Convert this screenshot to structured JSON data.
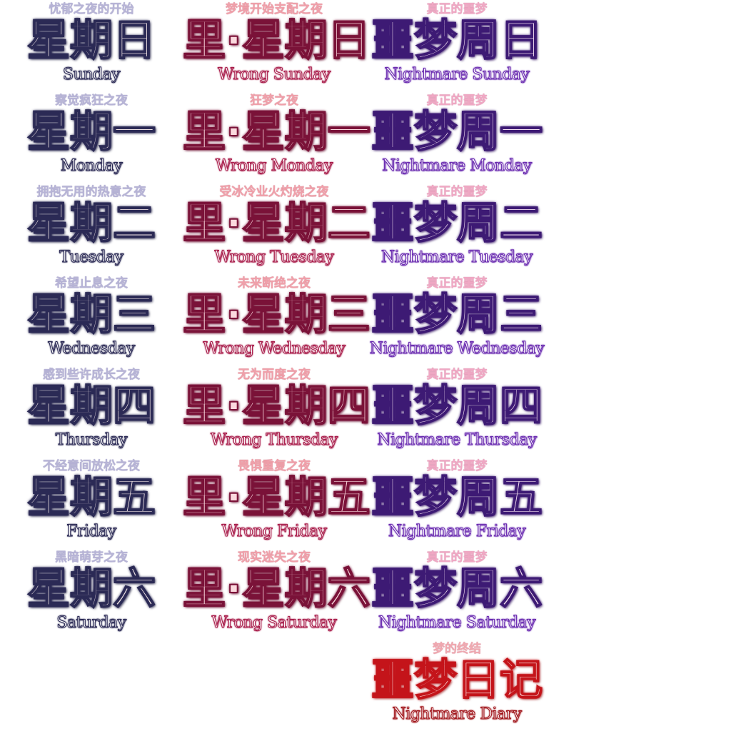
{
  "colors": {
    "week_outline": "#2b2a55",
    "wrong_outline": "#7a1238",
    "nightmare_outline": "#3d1a74",
    "finale_outline": "#c4141a"
  },
  "week": [
    {
      "subtitle": "忧郁之夜的开始",
      "title": "星期日",
      "english": "Sunday"
    },
    {
      "subtitle": "察觉疯狂之夜",
      "title": "星期一",
      "english": "Monday"
    },
    {
      "subtitle": "拥抱无用的热意之夜",
      "title": "星期二",
      "english": "Tuesday"
    },
    {
      "subtitle": "希望止息之夜",
      "title": "星期三",
      "english": "Wednesday"
    },
    {
      "subtitle": "感到些许成长之夜",
      "title": "星期四",
      "english": "Thursday"
    },
    {
      "subtitle": "不经意间放松之夜",
      "title": "星期五",
      "english": "Friday"
    },
    {
      "subtitle": "黑暗萌芽之夜",
      "title": "星期六",
      "english": "Saturday"
    }
  ],
  "wrong": [
    {
      "subtitle": "梦境开始支配之夜",
      "title": "里·星期日",
      "english": "Wrong Sunday"
    },
    {
      "subtitle": "狂梦之夜",
      "title": "里·星期一",
      "english": "Wrong Monday"
    },
    {
      "subtitle": "受冰冷业火灼烧之夜",
      "title": "里·星期二",
      "english": "Wrong Tuesday"
    },
    {
      "subtitle": "未来断绝之夜",
      "title": "里·星期三",
      "english": "Wrong Wednesday"
    },
    {
      "subtitle": "无为而度之夜",
      "title": "里·星期四",
      "english": "Wrong Thursday"
    },
    {
      "subtitle": "畏惧重复之夜",
      "title": "里·星期五",
      "english": "Wrong Friday"
    },
    {
      "subtitle": "现实迷失之夜",
      "title": "里·星期六",
      "english": "Wrong Saturday"
    }
  ],
  "nightmare": [
    {
      "subtitle": "真正的噩梦",
      "title": "噩梦周日",
      "english": "Nightmare Sunday"
    },
    {
      "subtitle": "真正的噩梦",
      "title": "噩梦周一",
      "english": "Nightmare Monday"
    },
    {
      "subtitle": "真正的噩梦",
      "title": "噩梦周二",
      "english": "Nightmare Tuesday"
    },
    {
      "subtitle": "真正的噩梦",
      "title": "噩梦周三",
      "english": "Nightmare Wednesday"
    },
    {
      "subtitle": "真正的噩梦",
      "title": "噩梦周四",
      "english": "Nightmare Thursday"
    },
    {
      "subtitle": "真正的噩梦",
      "title": "噩梦周五",
      "english": "Nightmare Friday"
    },
    {
      "subtitle": "真正的噩梦",
      "title": "噩梦周六",
      "english": "Nightmare Saturday"
    }
  ],
  "finale": {
    "subtitle": "梦的终结",
    "title": "噩梦日记",
    "english": "Nightmare Diary"
  }
}
